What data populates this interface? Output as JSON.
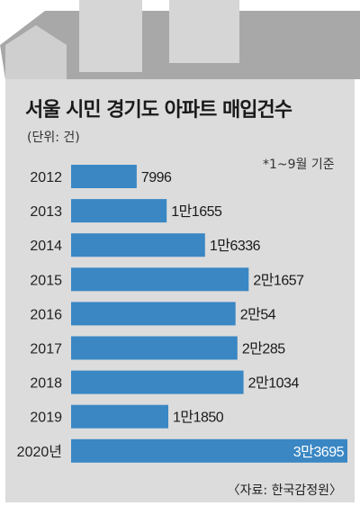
{
  "title": "서울 시민 경기도 아파트 매입건수",
  "unit_note": "(단위: 건)",
  "period_note": "*1~9월 기준",
  "source": "〈자료: 한국감정원〉",
  "colors": {
    "bar": "#3a87c4",
    "panel": "#dcdcdc",
    "roof": "#a8a8a8",
    "chimney": "#d6d6d6"
  },
  "chart_data": {
    "type": "bar",
    "orientation": "horizontal",
    "categories": [
      "2012",
      "2013",
      "2014",
      "2015",
      "2016",
      "2017",
      "2018",
      "2019",
      "2020년"
    ],
    "values": [
      7996,
      11655,
      16336,
      21657,
      20054,
      20285,
      21034,
      11850,
      33695
    ],
    "value_labels": [
      "7996",
      "1만1655",
      "1만6336",
      "2만1657",
      "2만54",
      "2만285",
      "2만1034",
      "1만1850",
      "3만3695"
    ],
    "title": "서울 시민 경기도 아파트 매입건수",
    "xlabel": "",
    "ylabel": "",
    "xlim": [
      0,
      33695
    ],
    "grid": false,
    "legend": "none"
  }
}
